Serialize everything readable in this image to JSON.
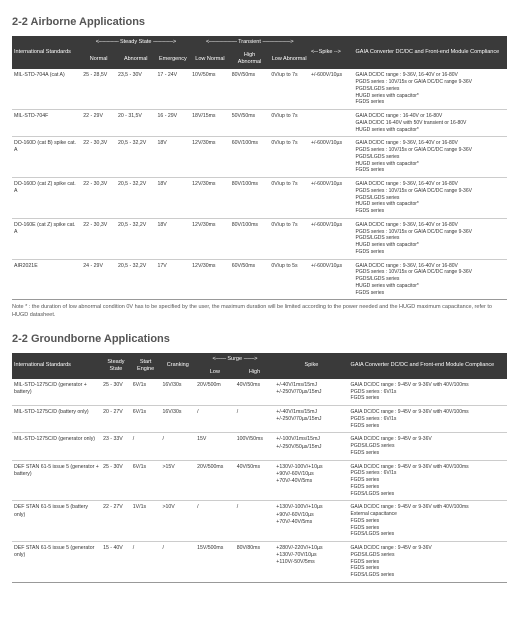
{
  "airborne": {
    "heading": "2-2 Airborne Applications",
    "header": {
      "std": "International Standards",
      "steady": "Steady State",
      "transient": "Transient",
      "spike": "Spike",
      "comp": "GAIA Converter DC/DC and Front-end Module Compliance",
      "normal": "Normal",
      "abnormal": "Abnormal",
      "emergency": "Emergency",
      "lowNormal": "Low Normal",
      "highAbnormal": "High Abnormal",
      "lowAbnormal": "Low Abnormal",
      "arrowsL": "<---------------",
      "arrowsR": "--------------->",
      "arrowsTL": "<---------------------",
      "arrowsTR": "--------------------->",
      "arrowsS": "<--- "
    },
    "rows": [
      {
        "std": "MIL-STD-704A (cat A)",
        "normal": "25 - 28,5V",
        "abnormal": "23,5 - 30V",
        "emergency": "17 - 24V",
        "lowNormal": "10V/50ms",
        "highAbnormal": "80V/50ms",
        "lowAbnormal": "0V/up to 7s",
        "spike": "+/-600V/10µs",
        "comp": "GAIA DC/DC range : 9-36V, 16-40V or 16-80V\nPGDS series : 10V/15s or GAIA DC/DC range 9-36V\nPGDS/LGDS series\nHUGD series with capacitor*\nFGDS series"
      },
      {
        "std": "MIL-STD-704F",
        "normal": "22 - 29V",
        "abnormal": "20 - 31,5V",
        "emergency": "16 - 29V",
        "lowNormal": "18V/15ms",
        "highAbnormal": "50V/50ms",
        "lowAbnormal": "0V/up to 7s",
        "spike": "",
        "comp": "GAIA DC/DC range : 16-40V or 16-80V\nGAIA DC/DC 16-40V with 50V transient or 16-80V\nHUGD series with capacitor*"
      },
      {
        "std": "DO-160D (cat B) spike cat. A",
        "normal": "22 - 30,3V",
        "abnormal": "20,5 - 32,2V",
        "emergency": "18V",
        "lowNormal": "12V/30ms",
        "highAbnormal": "60V/100ms",
        "lowAbnormal": "0V/up to 7s",
        "spike": "+/-600V/10µs",
        "comp": "GAIA DC/DC range : 9-36V, 16-40V or 16-80V\nPGDS series : 10V/15s or GAIA DC/DC range 9-36V\nPGDS/LGDS series\nHUGD series with capacitor*\nFGDS series"
      },
      {
        "std": "DO-160D (cat Z) spike cat. A",
        "normal": "22 - 30,3V",
        "abnormal": "20,5 - 32,2V",
        "emergency": "18V",
        "lowNormal": "12V/30ms",
        "highAbnormal": "80V/100ms",
        "lowAbnormal": "0V/up to 7s",
        "spike": "+/-600V/10µs",
        "comp": "GAIA DC/DC range : 9-36V, 16-40V or 16-80V\nPGDS series : 10V/15s or GAIA DC/DC range 9-36V\nPGDS/LGDS series\nHUGD series with capacitor*\nFGDS series"
      },
      {
        "std": "DO-160E (cat Z) spike cat. A",
        "normal": "22 - 30,3V",
        "abnormal": "20,5 - 32,2V",
        "emergency": "18V",
        "lowNormal": "12V/30ms",
        "highAbnormal": "80V/100ms",
        "lowAbnormal": "0V/up to 7s",
        "spike": "+/-600V/10µs",
        "comp": "GAIA DC/DC range : 9-36V, 16-40V or 16-80V\nPGDS series : 10V/15s or GAIA DC/DC range 9-36V\nPGDS/LGDS series\nHUGD series with capacitor*\nFGDS series"
      },
      {
        "std": "AIR2021E",
        "normal": "24 - 29V",
        "abnormal": "20,5 - 32,2V",
        "emergency": "17V",
        "lowNormal": "12V/30ms",
        "highAbnormal": "60V/50ms",
        "lowAbnormal": "0V/up to 5s",
        "spike": "+/-600V/10µs",
        "comp": "GAIA DC/DC range : 9-36V, 16-40V or 16-80V\nPGDS series : 10V/15s or GAIA DC/DC range 9-36V\nPGDS/LGDS series\nHUGD series with capacitor*\nFGDS series"
      }
    ],
    "note": "Note * : the duration of low abnormal condition 0V has to be specified by the user, the maximum duration will be limited according to the power needed and the HUGD maximum capacitance, refer to HUGD datasheet."
  },
  "groundborne": {
    "heading": "2-2 Groundborne Applications",
    "header": {
      "std": "International Standards",
      "steady": "Steady State",
      "start": "Start Engine",
      "cranking": "Cranking",
      "surge": "Surge",
      "low": "Low",
      "high": "High",
      "spike": "Spike",
      "comp": "GAIA Converter DC/DC and Front-end Module Compliance",
      "arrowsL": "<--------",
      "arrowsR": "-------->"
    },
    "rows": [
      {
        "std": "MIL-STD-1275C/D (generator + battery)",
        "steady": "25 - 30V",
        "start": "6V/1s",
        "cranking": "16V/30s",
        "low": "20V/500m",
        "high": "40V/50ms",
        "spike": "+/-40V/1ms/15mJ\n+/-250V/70µs/15mJ",
        "comp": "GAIA DC/DC range : 9-45V or 9-36V with 40V/100ms\nPGDS series : 6V/1s\nFGDS series"
      },
      {
        "std": "MIL-STD-1275C/D (battery only)",
        "steady": "20 - 27V",
        "start": "6V/1s",
        "cranking": "16V/30s",
        "low": "/",
        "high": "/",
        "spike": "+/-40V/1ms/15mJ\n+/-250V/70µs/15mJ",
        "comp": "GAIA DC/DC range : 9-45V or 9-36V with 40V/100ms\nPGDS series : 6V/1s\nFGDS series"
      },
      {
        "std": "MIL-STD-1275C/D (generator only)",
        "steady": "23 - 33V",
        "start": "/",
        "cranking": "/",
        "low": "15V",
        "high": "100V/50ms",
        "spike": "+/-100V/1ms/15mJ\n+/-250V/50µs/15mJ",
        "comp": "GAIA DC/DC range : 9-45V or 9-36V\nPGDS/LGDS series\nFGDS series"
      },
      {
        "std": "DEF STAN 61-5 issue 5 (generator + battery)",
        "steady": "25 - 30V",
        "start": "6V/1s",
        "cranking": ">15V",
        "low": "20V/500ms",
        "high": "40V/50ms",
        "spike": "+130V/-100V/+10µs\n+90V/-60V/10µs\n+70V/-40V/5ms",
        "comp": "GAIA DC/DC range : 9-45V or 9-36V with 40V/100ms\nPGDS series : 6V/1s\nFGDS series\nFGDS series\nFGDS/LGDS series"
      },
      {
        "std": "DEF STAN 61-5 issue 5 (battery only)",
        "steady": "22 - 27V",
        "start": "1V/1s",
        "cranking": ">10V",
        "low": "/",
        "high": "/",
        "spike": "+130V/-100V/+10µs\n+90V/-60V/10µs\n+70V/-40V/5ms",
        "comp": "GAIA DC/DC range : 9-45V or 9-36V with 40V/100ms\nExternal capacitance\nFGDS series\nFGDS series\nFGDS/LGDS series"
      },
      {
        "std": "DEF STAN 61-5 issue 5 (generator only)",
        "steady": "15 - 40V",
        "start": "/",
        "cranking": "/",
        "low": "15V/500ms",
        "high": "80V/80ms",
        "spike": "+280V/-220V/+10µs\n+130V/-70V/10µs\n+110V/-50V/5ms",
        "comp": "GAIA DC/DC range : 9-45V or 9-36V\nPGDS/LGDS series\nFGDS series\nFGDS series\nFGDS/LGDS series"
      }
    ]
  }
}
